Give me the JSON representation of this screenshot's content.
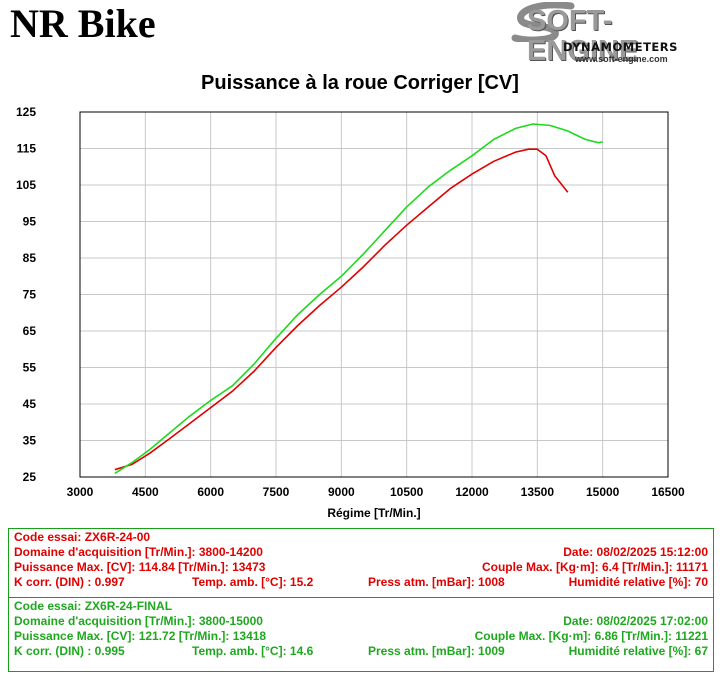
{
  "header": {
    "brand": "NR Bike",
    "logo_main": "SOFT-ENGINE",
    "logo_sub": "DYNAMOMETERS",
    "logo_url": "www.soft-engine.com"
  },
  "colors": {
    "run1": "#e00000",
    "run2": "#1fd91f",
    "grid": "#c8c8c8",
    "info_border": "#19a019"
  },
  "chart_data": {
    "type": "line",
    "title": "Puissance à la roue Corriger [CV]",
    "xlabel": "Régime [Tr/Min.]",
    "ylabel": "",
    "xlim": [
      3000,
      16500
    ],
    "ylim": [
      25,
      125
    ],
    "x_ticks": [
      3000,
      4500,
      6000,
      7500,
      9000,
      10500,
      12000,
      13500,
      15000,
      16500
    ],
    "y_ticks": [
      25,
      35,
      45,
      55,
      65,
      75,
      85,
      95,
      105,
      115,
      125
    ],
    "grid": true,
    "legend": "none",
    "series": [
      {
        "color": "#e00000",
        "x": [
          3800,
          4200,
          4600,
          5000,
          5500,
          6000,
          6500,
          7000,
          7500,
          8000,
          8500,
          9000,
          9500,
          10000,
          10500,
          11000,
          11500,
          12000,
          12500,
          13000,
          13300,
          13500,
          13700,
          13900,
          14200
        ],
        "y": [
          27,
          28.5,
          31.5,
          35,
          39.5,
          44,
          48.5,
          54,
          60.5,
          66.5,
          72,
          77,
          82.5,
          88.5,
          94,
          99,
          104,
          108,
          111.5,
          114,
          114.8,
          114.8,
          113,
          107.5,
          103
        ]
      },
      {
        "color": "#1fd91f",
        "x": [
          3800,
          4200,
          4600,
          5000,
          5500,
          6000,
          6500,
          7000,
          7500,
          8000,
          8500,
          9000,
          9500,
          10000,
          10500,
          11000,
          11500,
          12000,
          12500,
          13000,
          13400,
          13800,
          14200,
          14600,
          14900,
          15000
        ],
        "y": [
          26,
          29,
          32.5,
          36.5,
          41.5,
          46,
          50,
          56,
          63,
          69.5,
          75,
          80,
          86,
          92.5,
          99,
          104.5,
          109,
          113,
          117.5,
          120.5,
          121.7,
          121.3,
          119.8,
          117.5,
          116.6,
          116.8
        ]
      }
    ]
  },
  "runs": [
    {
      "code": "Code essai: ZX6R-24-00",
      "domain": "Domaine d'acquisition [Tr/Min.]: 3800-14200",
      "date": "Date: 08/02/2025   15:12:00",
      "power": "Puissance Max. [CV]: 114.84   [Tr/Min.]: 13473",
      "torque": "Couple Max. [Kg·m]: 6.4   [Tr/Min.]: 11171",
      "kcorr": "K corr. (DIN) : 0.997",
      "temp": "Temp. amb. [°C]: 15.2",
      "press": "Press atm. [mBar]: 1008",
      "humid": "Humidité relative [%]: 70"
    },
    {
      "code": "Code essai: ZX6R-24-FINAL",
      "domain": "Domaine d'acquisition [Tr/Min.]: 3800-15000",
      "date": "Date: 08/02/2025   17:02:00",
      "power": "Puissance Max. [CV]: 121.72   [Tr/Min.]: 13418",
      "torque": "Couple Max. [Kg·m]: 6.86   [Tr/Min.]: 11221",
      "kcorr": "K corr. (DIN) : 0.995",
      "temp": "Temp. amb. [°C]: 14.6",
      "press": "Press atm. [mBar]: 1009",
      "humid": "Humidité relative [%]: 67"
    }
  ]
}
